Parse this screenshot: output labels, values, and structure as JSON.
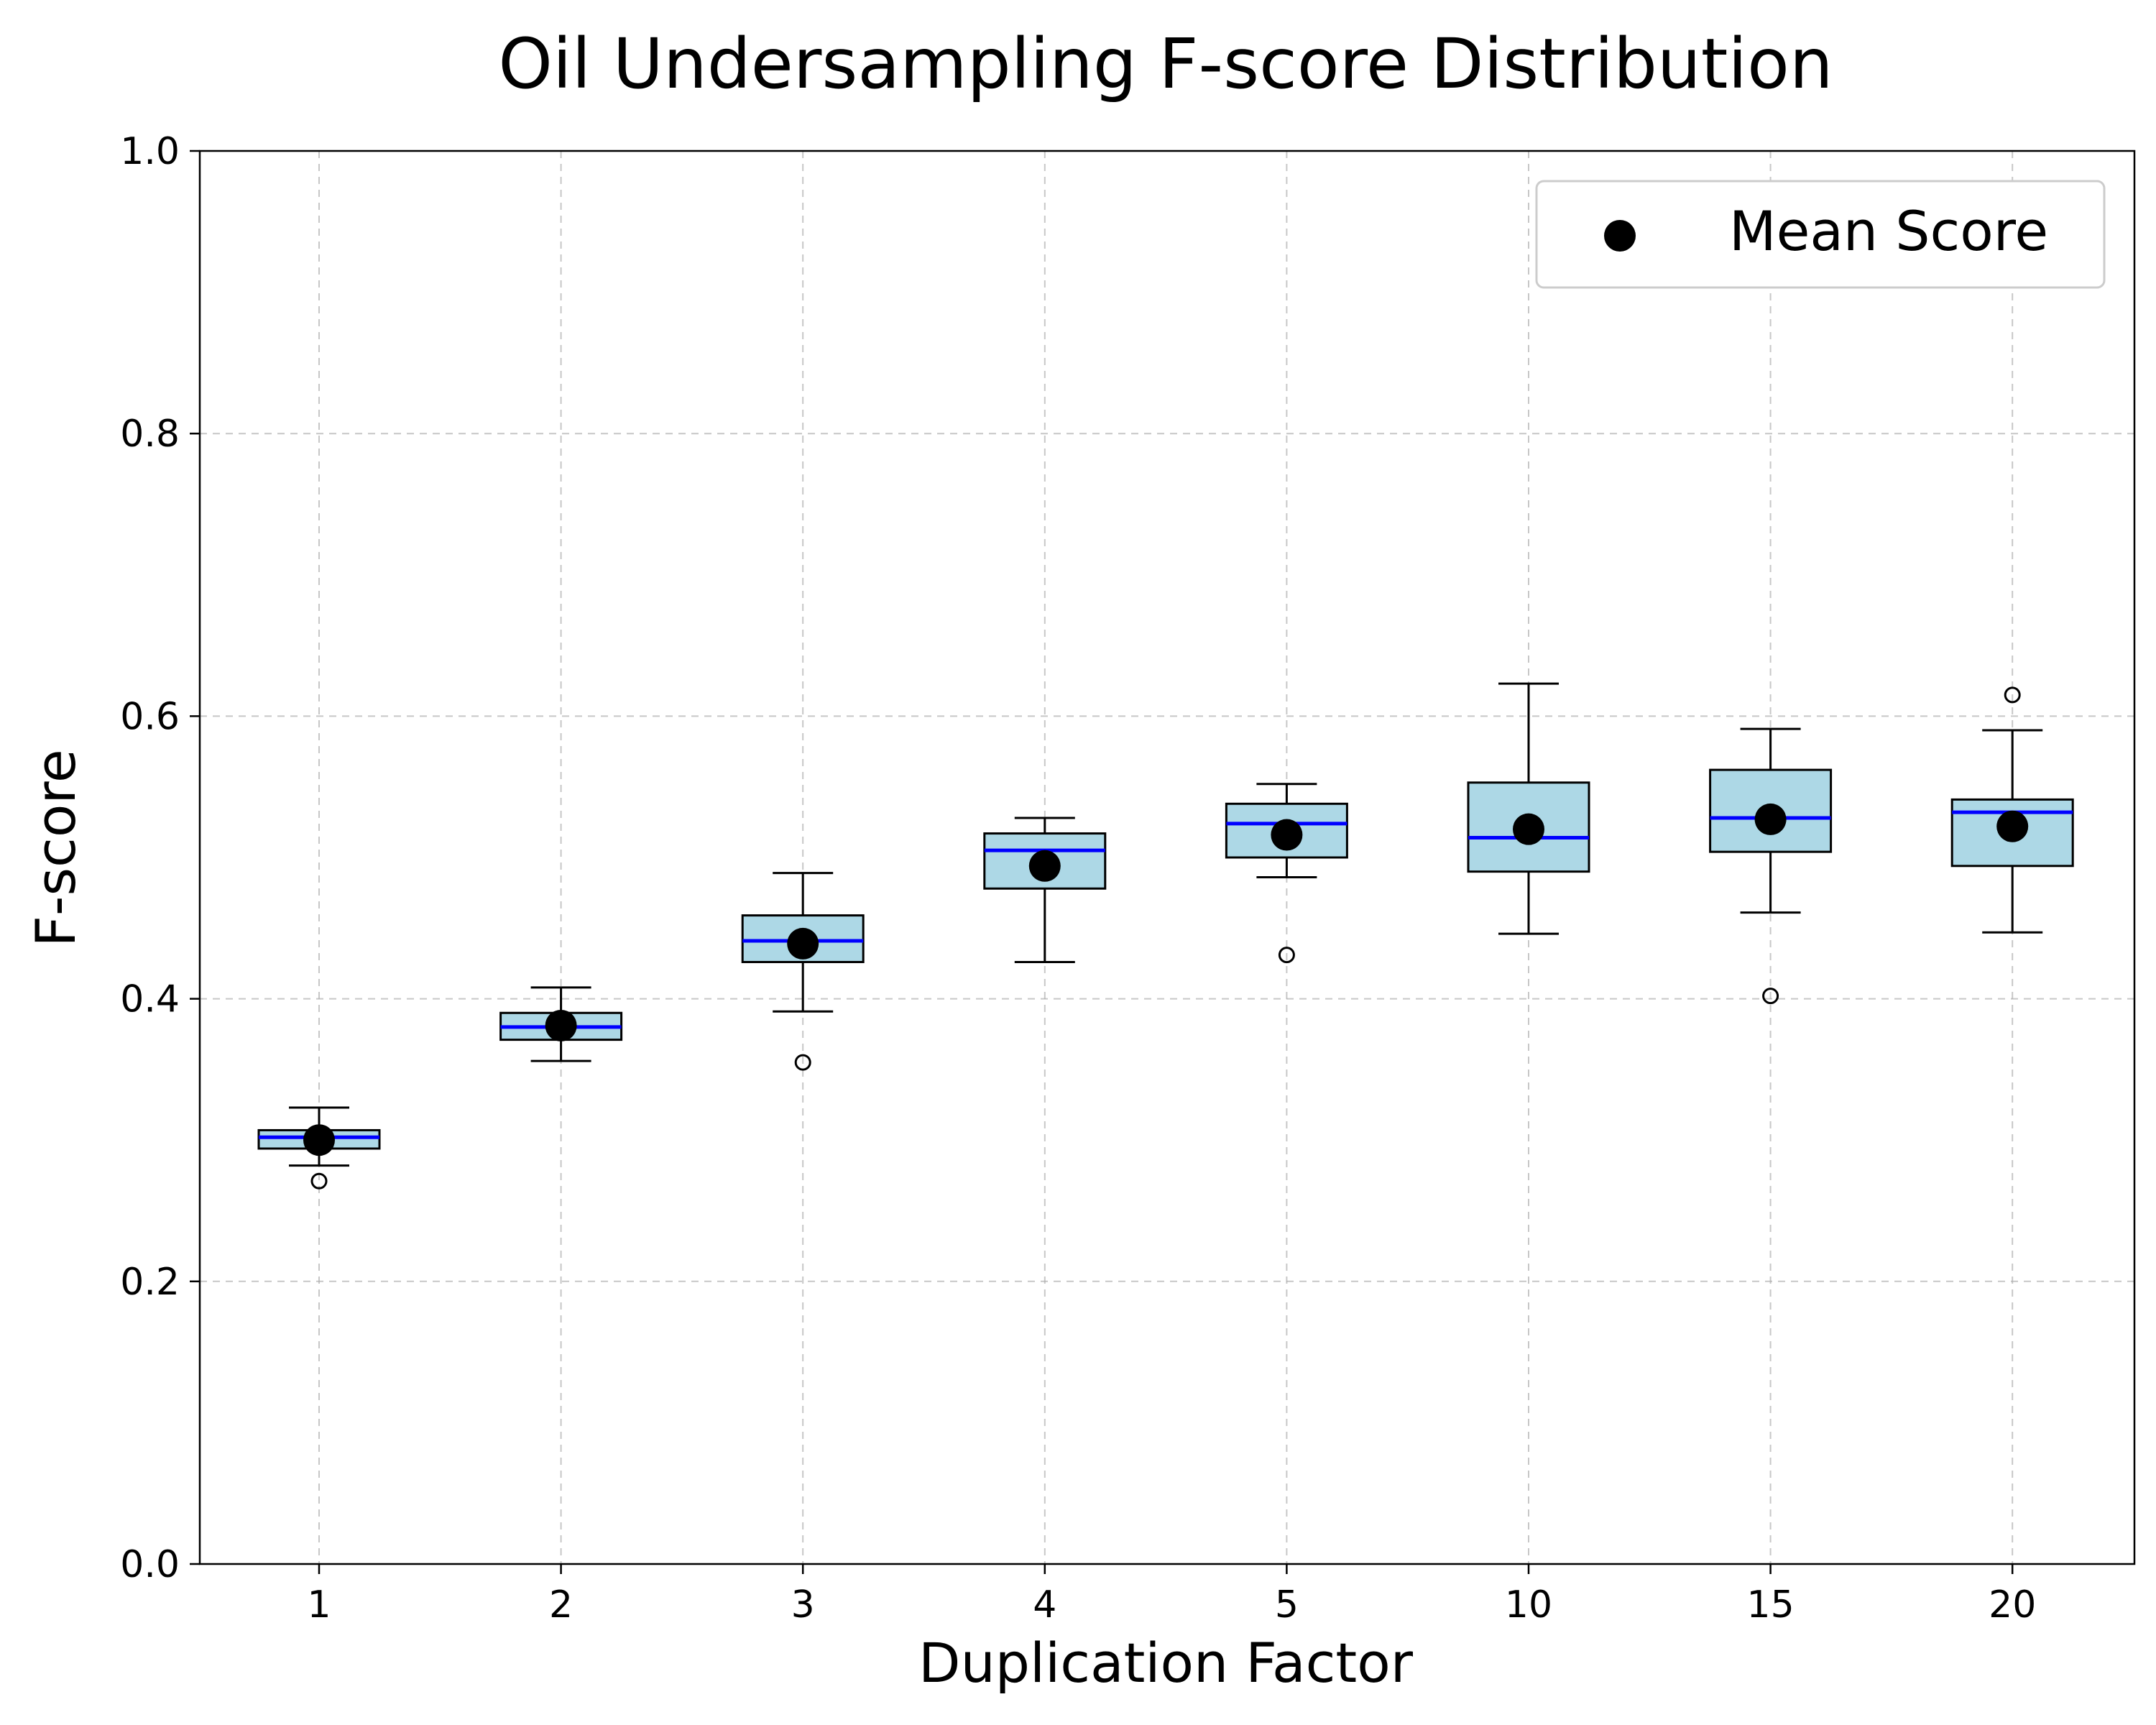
{
  "chart_data": {
    "type": "box",
    "title": "Oil Undersampling F-score Distribution",
    "xlabel": "Duplication Factor",
    "ylabel": "F-score",
    "ylim": [
      0.0,
      1.0
    ],
    "yticks": [
      "0.0",
      "0.2",
      "0.4",
      "0.6",
      "0.8",
      "1.0"
    ],
    "grid": true,
    "legend": {
      "placement": "top-right",
      "entries": [
        "Mean Score"
      ]
    },
    "colors": {
      "box_fill": "#add8e6",
      "median": "#0000ff",
      "mean_marker": "#000000"
    },
    "categories": [
      "1",
      "2",
      "3",
      "4",
      "5",
      "10",
      "15",
      "20"
    ],
    "boxes": [
      {
        "category": "1",
        "whisker_low": 0.282,
        "q1": 0.294,
        "median": 0.302,
        "q3": 0.307,
        "whisker_high": 0.323,
        "mean": 0.3,
        "outliers": [
          0.271
        ]
      },
      {
        "category": "2",
        "whisker_low": 0.356,
        "q1": 0.371,
        "median": 0.38,
        "q3": 0.39,
        "whisker_high": 0.408,
        "mean": 0.381,
        "outliers": []
      },
      {
        "category": "3",
        "whisker_low": 0.391,
        "q1": 0.426,
        "median": 0.441,
        "q3": 0.459,
        "whisker_high": 0.489,
        "mean": 0.439,
        "outliers": [
          0.355
        ]
      },
      {
        "category": "4",
        "whisker_low": 0.426,
        "q1": 0.478,
        "median": 0.505,
        "q3": 0.517,
        "whisker_high": 0.528,
        "mean": 0.494,
        "outliers": []
      },
      {
        "category": "5",
        "whisker_low": 0.486,
        "q1": 0.5,
        "median": 0.524,
        "q3": 0.538,
        "whisker_high": 0.552,
        "mean": 0.516,
        "outliers": [
          0.431
        ]
      },
      {
        "category": "10",
        "whisker_low": 0.446,
        "q1": 0.49,
        "median": 0.514,
        "q3": 0.553,
        "whisker_high": 0.623,
        "mean": 0.52,
        "outliers": []
      },
      {
        "category": "15",
        "whisker_low": 0.461,
        "q1": 0.504,
        "median": 0.528,
        "q3": 0.562,
        "whisker_high": 0.591,
        "mean": 0.527,
        "outliers": [
          0.402
        ]
      },
      {
        "category": "20",
        "whisker_low": 0.447,
        "q1": 0.494,
        "median": 0.532,
        "q3": 0.541,
        "whisker_high": 0.59,
        "mean": 0.522,
        "outliers": [
          0.615
        ]
      }
    ]
  }
}
